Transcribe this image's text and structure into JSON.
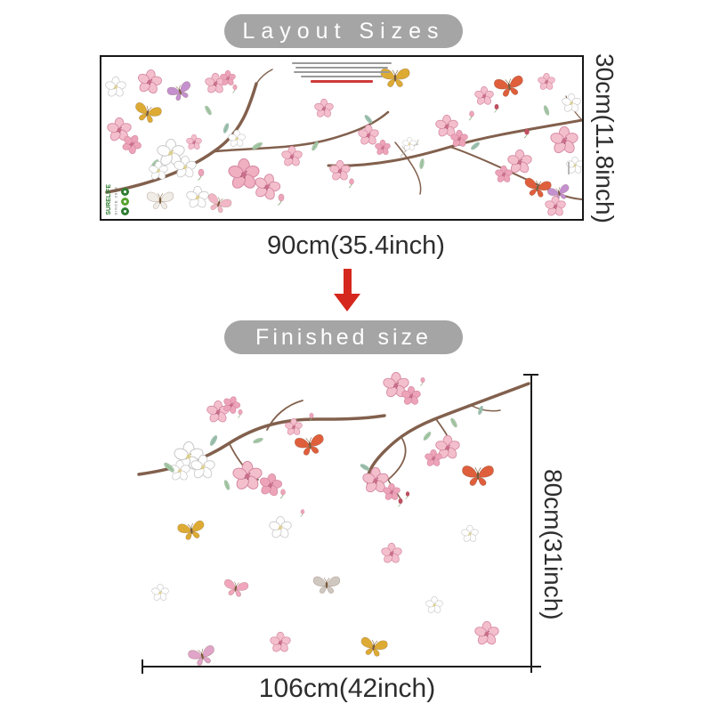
{
  "banners": {
    "layout": {
      "label": "Layout Sizes"
    },
    "finished": {
      "label": "Finished size"
    },
    "pill_bg": "#a5a5a5",
    "text_color": "#ffffff"
  },
  "dimensions": {
    "sheet_height": "30cm(11.8inch)",
    "sheet_width": "90cm(35.4inch)",
    "finished_height": "80cm(31inch)",
    "finished_width": "106cm(42inch)"
  },
  "arrow": {
    "direction": "down",
    "color": "#d5271d"
  },
  "brand": {
    "name": "SURELIFE",
    "tagline": "SINCE 2013"
  },
  "colors": {
    "pink_flower": "#f4bfcd",
    "deep_pink": "#eda4b9",
    "white_flower": "#fefefe",
    "leaf": "#a9cbaa",
    "teal_leaf": "#9fc4b4",
    "branch": "#82604d",
    "butterfly_yellow": "#ddab33",
    "butterfly_orange": "#df5f3c",
    "butterfly_purple": "#c490ce",
    "butterfly_pink": "#f2a6bd",
    "butterfly_gray": "#cfc8c0",
    "bud_red": "#c05060",
    "dimension_line": "#1c1c1c"
  },
  "sheet_artwork": {
    "items": [
      [
        "w",
        16,
        34,
        1.2,
        0,
        null
      ],
      [
        "f",
        54,
        28,
        1.4,
        10,
        null
      ],
      [
        "b",
        88,
        38,
        1.0,
        -20,
        "#c490ce"
      ],
      [
        "b",
        52,
        62,
        1.1,
        15,
        "#ddab33"
      ],
      [
        "f",
        20,
        82,
        1.4,
        0,
        null
      ],
      [
        "f",
        34,
        98,
        1.1,
        30,
        "#eda4b9"
      ],
      [
        "l",
        60,
        120,
        1,
        40,
        null
      ],
      [
        "w",
        78,
        108,
        1.6,
        0,
        null
      ],
      [
        "w",
        94,
        124,
        1.3,
        0,
        null
      ],
      [
        "w",
        64,
        128,
        1.1,
        0,
        null
      ],
      [
        "f",
        104,
        96,
        0.9,
        0,
        null
      ],
      [
        "u",
        112,
        130,
        1.2,
        0,
        null
      ],
      [
        "b",
        66,
        160,
        1.1,
        0,
        "#f0ece6"
      ],
      [
        "w",
        108,
        158,
        1.3,
        0,
        null
      ],
      [
        "b",
        132,
        164,
        1.0,
        20,
        "#f2b7c6"
      ],
      [
        "f",
        128,
        30,
        1.2,
        0,
        null
      ],
      [
        "f",
        142,
        24,
        0.9,
        0,
        "#eda4b9"
      ],
      [
        "u",
        150,
        34,
        0.9,
        0,
        null
      ],
      [
        "l",
        120,
        60,
        1,
        -30,
        null
      ],
      [
        "l",
        140,
        80,
        1,
        20,
        "#9fc4b4"
      ],
      [
        "f",
        160,
        132,
        1.8,
        0,
        "#f1afc2"
      ],
      [
        "f",
        186,
        146,
        1.5,
        15,
        null
      ],
      [
        "u",
        202,
        158,
        1.2,
        0,
        null
      ],
      [
        "f",
        214,
        112,
        1.2,
        0,
        null
      ],
      [
        "w",
        152,
        92,
        1.0,
        0,
        null
      ],
      [
        "l",
        175,
        100,
        1.1,
        60,
        null
      ],
      [
        "f",
        250,
        58,
        1.1,
        0,
        null
      ],
      [
        "f",
        268,
        128,
        1.2,
        0,
        null
      ],
      [
        "u",
        281,
        140,
        1.0,
        0,
        null
      ],
      [
        "w",
        346,
        98,
        0.8,
        0,
        null
      ],
      [
        "b",
        330,
        22,
        1.2,
        0,
        "#ddab33"
      ],
      [
        "f",
        300,
        88,
        1.2,
        0,
        null
      ],
      [
        "f",
        316,
        102,
        0.9,
        0,
        "#eda4b9"
      ],
      [
        "f",
        388,
        78,
        1.3,
        0,
        null
      ],
      [
        "f",
        402,
        92,
        1.0,
        0,
        "#eda4b9"
      ],
      [
        "u",
        416,
        64,
        1.0,
        0,
        null
      ],
      [
        "f",
        430,
        44,
        1.1,
        0,
        null
      ],
      [
        "u",
        444,
        56,
        0.9,
        0,
        "#c05060"
      ],
      [
        "b",
        458,
        32,
        1.2,
        -10,
        "#df5f3c"
      ],
      [
        "f",
        470,
        118,
        1.4,
        0,
        null
      ],
      [
        "f",
        452,
        132,
        1.0,
        0,
        "#eda4b9"
      ],
      [
        "b",
        490,
        146,
        1.1,
        10,
        "#df5f3c"
      ],
      [
        "b",
        514,
        152,
        0.9,
        -15,
        "#c490ce"
      ],
      [
        "f",
        500,
        28,
        1.0,
        0,
        null
      ],
      [
        "w",
        528,
        52,
        1.1,
        0,
        null
      ],
      [
        "f",
        520,
        94,
        1.6,
        0,
        null
      ],
      [
        "w",
        532,
        122,
        1.0,
        0,
        null
      ],
      [
        "f",
        510,
        168,
        1.2,
        0,
        null
      ],
      [
        "u",
        478,
        84,
        1.0,
        0,
        "#c05060"
      ],
      [
        "l",
        240,
        100,
        1,
        30,
        null
      ],
      [
        "l",
        300,
        70,
        1,
        -40,
        "#9fc4b4"
      ],
      [
        "l",
        360,
        120,
        1,
        10,
        null
      ],
      [
        "l",
        420,
        100,
        1,
        50,
        "#9fc4b4"
      ],
      [
        "l",
        500,
        60,
        1,
        -20,
        null
      ]
    ]
  },
  "finished_artwork": {
    "items": [
      [
        "w",
        62,
        108,
        1.7,
        0,
        null
      ],
      [
        "w",
        78,
        120,
        1.4,
        0,
        null
      ],
      [
        "w",
        52,
        124,
        1.2,
        0,
        null
      ],
      [
        "f",
        95,
        58,
        1.3,
        0,
        null
      ],
      [
        "f",
        110,
        50,
        1.0,
        20,
        "#eda4b9"
      ],
      [
        "u",
        120,
        58,
        0.9,
        0,
        null
      ],
      [
        "f",
        128,
        130,
        1.7,
        0,
        null
      ],
      [
        "f",
        154,
        140,
        1.3,
        10,
        "#eda4b9"
      ],
      [
        "u",
        168,
        148,
        1.0,
        0,
        null
      ],
      [
        "f",
        180,
        75,
        1.0,
        0,
        null
      ],
      [
        "u",
        200,
        62,
        0.9,
        0,
        null
      ],
      [
        "b",
        198,
        94,
        1.2,
        -10,
        "#df5f3c"
      ],
      [
        "l",
        40,
        120,
        1.2,
        -50,
        null
      ],
      [
        "l",
        90,
        90,
        1.1,
        30,
        "#9fc4b4"
      ],
      [
        "l",
        140,
        90,
        1,
        70,
        null
      ],
      [
        "l",
        105,
        140,
        1,
        -20,
        null
      ],
      [
        "f",
        295,
        28,
        1.5,
        0,
        null
      ],
      [
        "f",
        312,
        40,
        1.1,
        0,
        "#eda4b9"
      ],
      [
        "u",
        325,
        22,
        0.9,
        0,
        null
      ],
      [
        "f",
        353,
        98,
        1.4,
        0,
        null
      ],
      [
        "f",
        337,
        110,
        1.0,
        0,
        "#eda4b9"
      ],
      [
        "f",
        272,
        135,
        1.5,
        0,
        null
      ],
      [
        "f",
        290,
        148,
        1.0,
        0,
        "#eda4b9"
      ],
      [
        "u",
        300,
        158,
        0.9,
        0,
        "#c05060"
      ],
      [
        "u",
        308,
        150,
        0.8,
        0,
        "#c05060"
      ],
      [
        "b",
        387,
        128,
        1.3,
        0,
        "#df5f3c"
      ],
      [
        "l",
        360,
        70,
        1,
        -30,
        null
      ],
      [
        "l",
        390,
        56,
        0.9,
        20,
        "#9fc4b4"
      ],
      [
        "l",
        330,
        85,
        1,
        40,
        null
      ],
      [
        "l",
        260,
        120,
        1,
        -60,
        "#9fc4b4"
      ],
      [
        "b",
        65,
        190,
        1.1,
        -10,
        "#ddab33"
      ],
      [
        "w",
        165,
        188,
        1.3,
        0,
        null
      ],
      [
        "u",
        190,
        170,
        0.8,
        0,
        null
      ],
      [
        "f",
        290,
        217,
        1.2,
        0,
        null
      ],
      [
        "w",
        378,
        195,
        1.0,
        0,
        null
      ],
      [
        "w",
        30,
        261,
        1.0,
        0,
        null
      ],
      [
        "b",
        115,
        255,
        1.0,
        10,
        "#f2a6bd"
      ],
      [
        "b",
        217,
        251,
        1.1,
        0,
        "#cfc8c0"
      ],
      [
        "w",
        338,
        275,
        1.0,
        0,
        null
      ],
      [
        "f",
        397,
        307,
        1.4,
        0,
        null
      ],
      [
        "b",
        77,
        331,
        1.1,
        -15,
        "#e0a4c8"
      ],
      [
        "f",
        165,
        317,
        1.2,
        0,
        null
      ],
      [
        "b",
        270,
        321,
        1.1,
        10,
        "#ddab33"
      ]
    ]
  }
}
